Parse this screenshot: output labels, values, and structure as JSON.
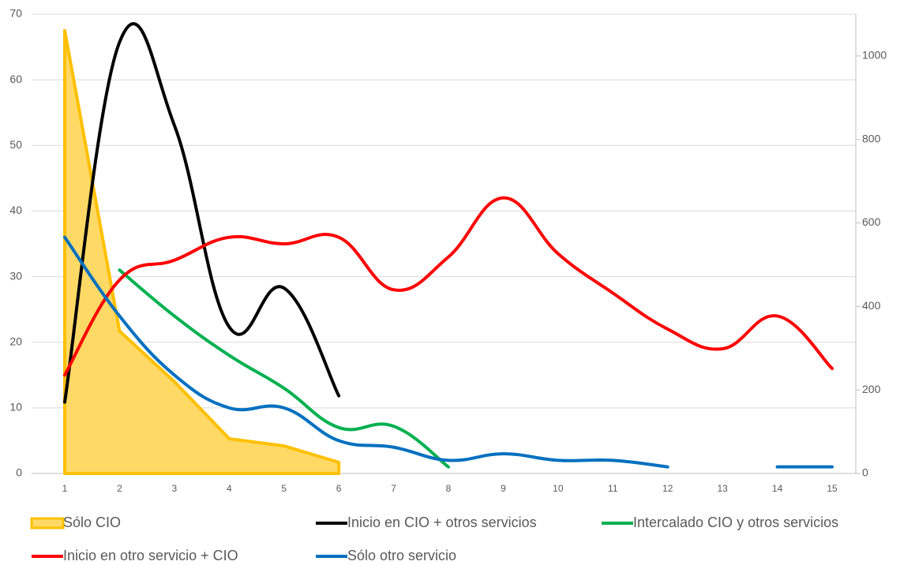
{
  "chart_data": {
    "type": "line",
    "categories": [
      "1",
      "2",
      "3",
      "4",
      "5",
      "6",
      "7",
      "8",
      "9",
      "10",
      "11",
      "12",
      "13",
      "14",
      "15"
    ],
    "series": [
      {
        "name": "Sólo CIO",
        "type": "area",
        "color": "#ffc000",
        "fill": "#ffd966",
        "values": [
          67.5,
          21.7,
          14,
          5.3,
          4.2,
          1.7,
          null,
          null,
          null,
          null,
          null,
          null,
          null,
          null,
          null
        ]
      },
      {
        "name": "Inicio en CIO + otros servicios",
        "color": "#000000",
        "axis": "y2",
        "values": [
          171,
          1033,
          834,
          351,
          444,
          186,
          null,
          null,
          null,
          null,
          null,
          null,
          null,
          null,
          null
        ]
      },
      {
        "name": "Intercalado CIO y otros servicios",
        "color": "#00b050",
        "values": [
          null,
          31,
          24,
          18,
          13,
          7,
          7.2,
          1,
          null,
          null,
          null,
          null,
          null,
          null,
          null
        ]
      },
      {
        "name": "Inicio en otro servicio + CIO",
        "color": "#ff0000",
        "values": [
          15,
          29.5,
          32.5,
          36,
          35,
          36,
          28,
          33,
          42,
          33.5,
          27.5,
          22,
          19,
          24,
          16
        ]
      },
      {
        "name": "Sólo otro servicio",
        "color": "#0070c0",
        "values": [
          36,
          24,
          15,
          10,
          10,
          5,
          4,
          2,
          3,
          2,
          2,
          1,
          null,
          1,
          1
        ]
      }
    ],
    "ylim": [
      0,
      70
    ],
    "yticks": [
      0,
      10,
      20,
      30,
      40,
      50,
      60,
      70
    ],
    "y2lim": [
      0,
      1100
    ],
    "y2ticks": [
      0,
      200,
      400,
      600,
      800,
      1000
    ],
    "grid": true,
    "legend": "bottom"
  }
}
